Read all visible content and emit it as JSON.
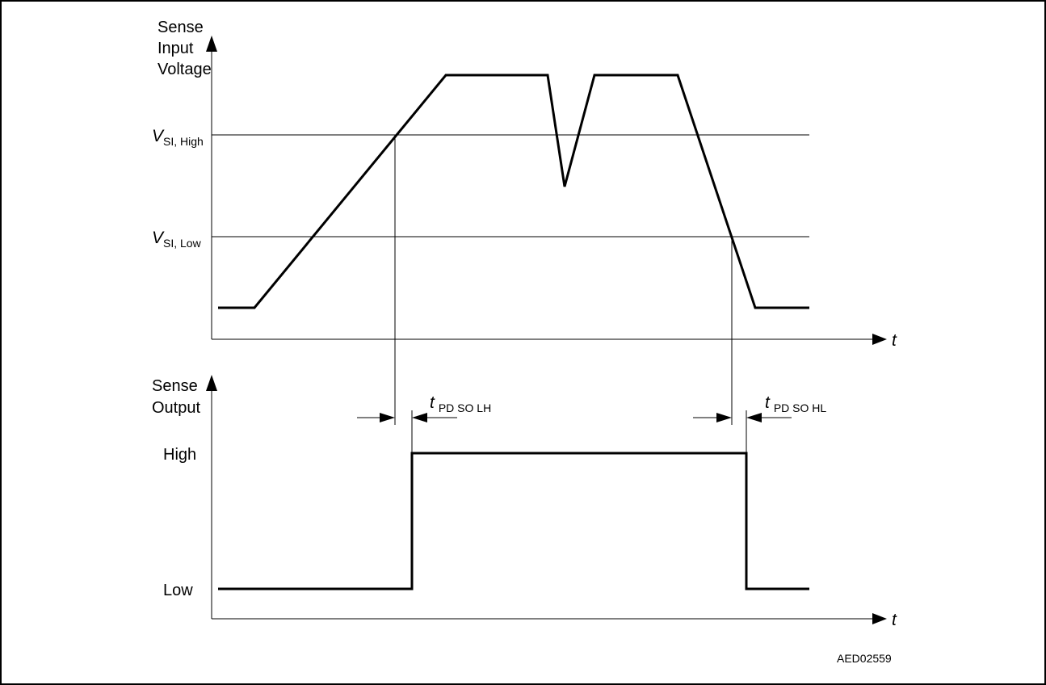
{
  "diagram": {
    "code": "AED02559",
    "top_panel": {
      "y_axis_label": [
        "Sense",
        "Input",
        "Voltage"
      ],
      "x_axis_label": "t",
      "threshold_high": {
        "symbol": "V",
        "subscript": "SI, High"
      },
      "threshold_low": {
        "symbol": "V",
        "subscript": "SI, Low"
      }
    },
    "bottom_panel": {
      "y_axis_label": [
        "Sense",
        "Output"
      ],
      "x_axis_label": "t",
      "level_high": "High",
      "level_low": "Low",
      "delay_lh": {
        "symbol": "t",
        "subscript": "PD SO LH"
      },
      "delay_hl": {
        "symbol": "t",
        "subscript": "PD SO HL"
      }
    }
  }
}
